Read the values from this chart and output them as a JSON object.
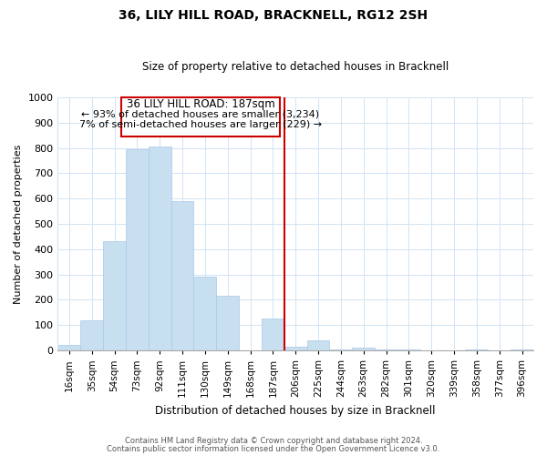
{
  "title": "36, LILY HILL ROAD, BRACKNELL, RG12 2SH",
  "subtitle": "Size of property relative to detached houses in Bracknell",
  "xlabel": "Distribution of detached houses by size in Bracknell",
  "ylabel": "Number of detached properties",
  "bar_labels": [
    "16sqm",
    "35sqm",
    "54sqm",
    "73sqm",
    "92sqm",
    "111sqm",
    "130sqm",
    "149sqm",
    "168sqm",
    "187sqm",
    "206sqm",
    "225sqm",
    "244sqm",
    "263sqm",
    "282sqm",
    "301sqm",
    "320sqm",
    "339sqm",
    "358sqm",
    "377sqm",
    "396sqm"
  ],
  "bar_values": [
    20,
    120,
    430,
    795,
    805,
    590,
    290,
    215,
    0,
    125,
    15,
    40,
    5,
    10,
    5,
    5,
    0,
    0,
    5,
    0,
    5
  ],
  "bar_color": "#c8dff0",
  "bar_edge_color": "#a8c8e8",
  "highlight_line_index": 9,
  "highlight_line_color": "#cc0000",
  "ylim": [
    0,
    1000
  ],
  "yticks": [
    0,
    100,
    200,
    300,
    400,
    500,
    600,
    700,
    800,
    900,
    1000
  ],
  "annotation_title": "36 LILY HILL ROAD: 187sqm",
  "annotation_line1": "← 93% of detached houses are smaller (3,234)",
  "annotation_line2": "7% of semi-detached houses are larger (229) →",
  "annotation_box_color": "#ffffff",
  "annotation_box_edge": "#cc0000",
  "footer_line1": "Contains HM Land Registry data © Crown copyright and database right 2024.",
  "footer_line2": "Contains public sector information licensed under the Open Government Licence v3.0.",
  "background_color": "#ffffff",
  "grid_color": "#d0e4f4"
}
